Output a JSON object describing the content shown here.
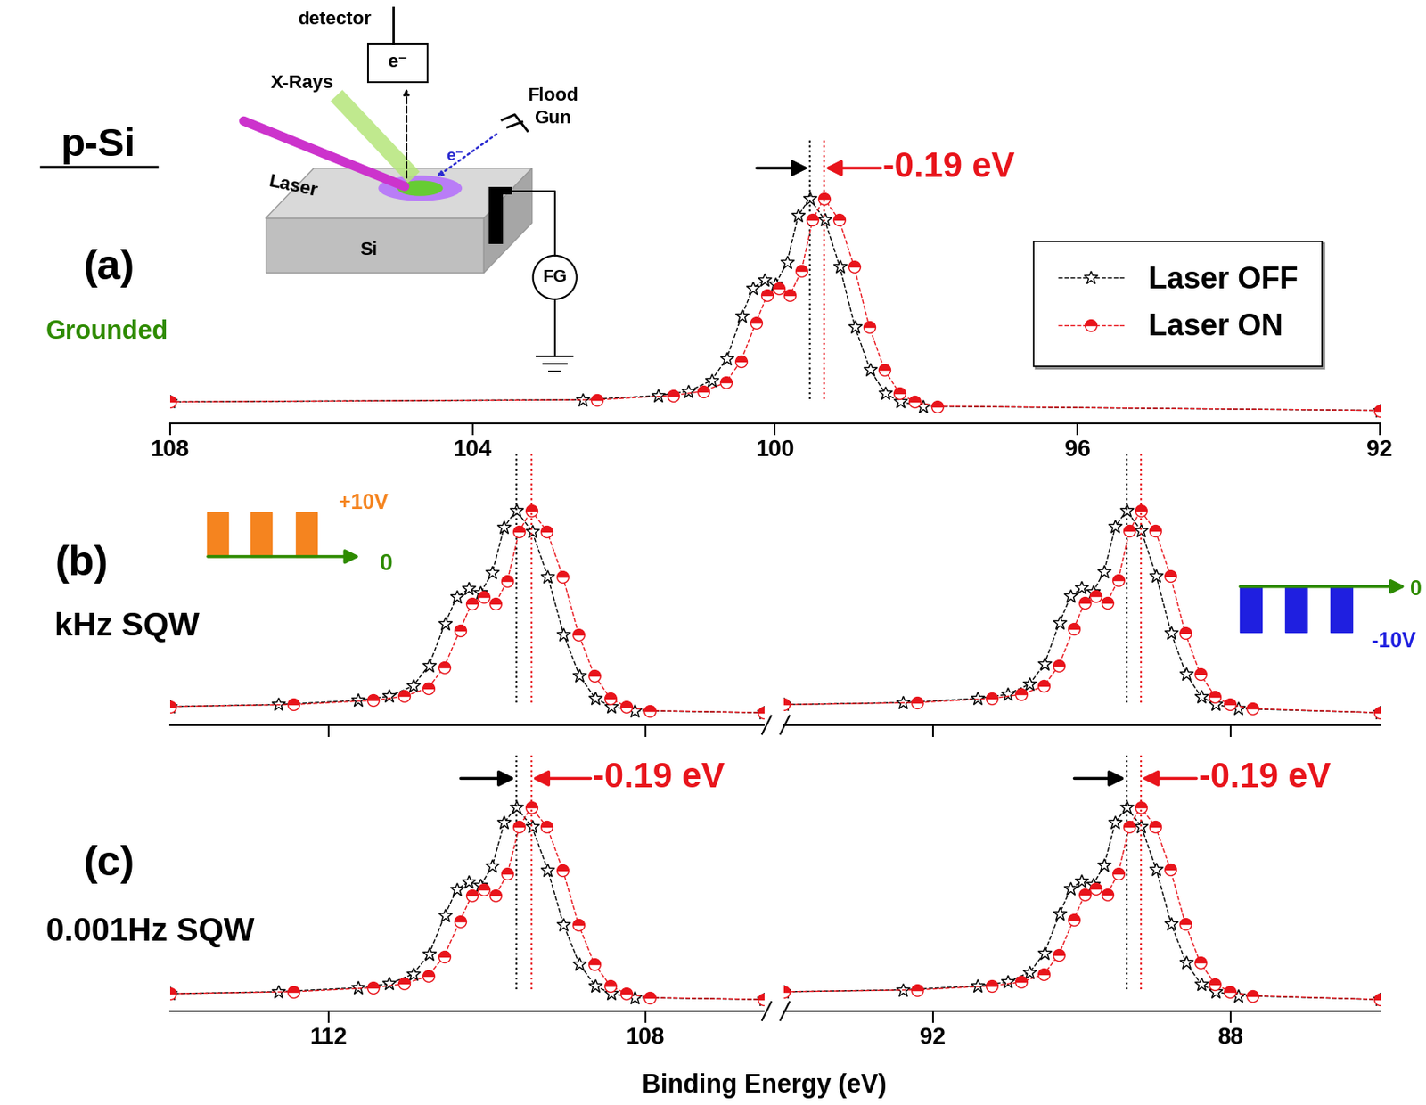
{
  "figure": {
    "title": "p-Si",
    "xlabel": "Binding Energy (eV)",
    "inset": {
      "detector": "detector",
      "detector_signal": "e⁻",
      "xray": "X-Rays",
      "laser": "Laser",
      "flood_gun": "Flood\nGun",
      "flood_electrons": "e⁻",
      "sample": "Si",
      "source": "FG"
    }
  },
  "chart_data": [
    {
      "type": "line",
      "panel_label": "(a)",
      "condition": "Grounded",
      "xlim": [
        108,
        92
      ],
      "xticks": [
        108,
        104,
        100,
        96,
        92
      ],
      "tick_labels": "x",
      "legend": "upper right",
      "annotation": "-0.19 eV",
      "series": [
        {
          "name": "Laser OFF",
          "color": "#000000",
          "marker": "star",
          "line_style": "dashed",
          "peak": 99.54,
          "x": [
            92,
            98.04,
            98.34,
            98.54,
            98.74,
            98.94,
            99.14,
            99.34,
            99.54,
            99.69,
            99.84,
            99.99,
            100.14,
            100.29,
            100.44,
            100.64,
            100.84,
            101.14,
            101.54,
            102.54,
            108
          ],
          "values": [
            0.01,
            0.03,
            0.05,
            0.09,
            0.2,
            0.4,
            0.68,
            0.9,
            1.0,
            0.92,
            0.7,
            0.6,
            0.62,
            0.58,
            0.45,
            0.25,
            0.15,
            0.1,
            0.08,
            0.06,
            0.05
          ]
        },
        {
          "name": "Laser ON",
          "color": "#e8141b",
          "marker": "half_circle",
          "line_style": "dashed",
          "peak": 99.35,
          "x": [
            92,
            97.85,
            98.15,
            98.35,
            98.55,
            98.75,
            98.95,
            99.15,
            99.35,
            99.5,
            99.65,
            99.8,
            99.95,
            100.1,
            100.25,
            100.45,
            100.65,
            100.95,
            101.35,
            102.35,
            108
          ],
          "values": [
            0.01,
            0.03,
            0.05,
            0.09,
            0.2,
            0.4,
            0.68,
            0.9,
            1.0,
            0.9,
            0.66,
            0.55,
            0.58,
            0.55,
            0.42,
            0.24,
            0.14,
            0.1,
            0.08,
            0.06,
            0.05
          ]
        }
      ]
    },
    {
      "type": "line",
      "panel_label": "(b)",
      "condition": "kHz SQW",
      "xlim": [
        114,
        106.5
      ],
      "xticks": [
        112,
        108
      ],
      "tick_labels": false,
      "waveform": {
        "high": "+10V",
        "low": "0"
      },
      "series": [
        {
          "name": "Laser OFF",
          "color": "#000000",
          "marker": "star",
          "line_style": "dashed",
          "peak": 109.63,
          "x": [
            106.5,
            108.13,
            108.43,
            108.63,
            108.83,
            109.03,
            109.23,
            109.43,
            109.63,
            109.78,
            109.93,
            110.08,
            110.23,
            110.38,
            110.53,
            110.73,
            110.93,
            111.23,
            111.63,
            112.63,
            114
          ],
          "values": [
            0.02,
            0.03,
            0.05,
            0.09,
            0.2,
            0.4,
            0.68,
            0.9,
            1.0,
            0.92,
            0.7,
            0.6,
            0.62,
            0.58,
            0.45,
            0.25,
            0.15,
            0.1,
            0.08,
            0.06,
            0.05
          ]
        },
        {
          "name": "Laser ON",
          "color": "#e8141b",
          "marker": "half_circle",
          "line_style": "dashed",
          "peak": 109.44,
          "x": [
            106.5,
            107.94,
            108.24,
            108.44,
            108.64,
            108.84,
            109.04,
            109.24,
            109.44,
            109.59,
            109.74,
            109.89,
            110.04,
            110.19,
            110.34,
            110.54,
            110.74,
            111.04,
            111.44,
            112.44,
            114
          ],
          "values": [
            0.02,
            0.03,
            0.05,
            0.09,
            0.2,
            0.4,
            0.68,
            0.9,
            1.0,
            0.9,
            0.66,
            0.55,
            0.58,
            0.55,
            0.42,
            0.24,
            0.14,
            0.1,
            0.08,
            0.06,
            0.05
          ]
        }
      ]
    },
    {
      "type": "line",
      "xlim": [
        94,
        86
      ],
      "xticks": [
        92,
        88
      ],
      "tick_labels": false,
      "waveform": {
        "high": "0",
        "low": "-10V"
      },
      "series": [
        {
          "name": "Laser OFF",
          "color": "#000000",
          "marker": "star",
          "line_style": "dashed",
          "peak": 89.4,
          "x": [
            86,
            87.9,
            88.2,
            88.4,
            88.6,
            88.8,
            89.0,
            89.2,
            89.4,
            89.55,
            89.7,
            89.85,
            90.0,
            90.15,
            90.3,
            90.5,
            90.7,
            91.0,
            91.4,
            92.4,
            94
          ],
          "values": [
            0.01,
            0.03,
            0.05,
            0.09,
            0.2,
            0.4,
            0.68,
            0.9,
            1.0,
            0.92,
            0.7,
            0.6,
            0.62,
            0.58,
            0.45,
            0.25,
            0.15,
            0.1,
            0.08,
            0.06,
            0.05
          ]
        },
        {
          "name": "Laser ON",
          "color": "#e8141b",
          "marker": "half_circle",
          "line_style": "dashed",
          "peak": 89.21,
          "x": [
            86,
            87.71,
            88.01,
            88.21,
            88.41,
            88.61,
            88.81,
            89.01,
            89.21,
            89.36,
            89.51,
            89.66,
            89.81,
            89.96,
            90.11,
            90.31,
            90.51,
            90.81,
            91.21,
            92.21,
            94
          ],
          "values": [
            0.01,
            0.03,
            0.05,
            0.09,
            0.2,
            0.4,
            0.68,
            0.9,
            1.0,
            0.9,
            0.66,
            0.55,
            0.58,
            0.55,
            0.42,
            0.24,
            0.14,
            0.1,
            0.08,
            0.06,
            0.05
          ]
        }
      ]
    },
    {
      "type": "line",
      "panel_label": "(c)",
      "condition": "0.001Hz SQW",
      "xlim": [
        114,
        106.5
      ],
      "xticks": [
        112,
        108
      ],
      "tick_labels": "x",
      "annotation": "-0.19 eV",
      "series": [
        {
          "name": "Laser OFF",
          "color": "#000000",
          "marker": "star",
          "line_style": "dashed",
          "peak": 109.63,
          "x": [
            106.5,
            108.13,
            108.43,
            108.63,
            108.83,
            109.03,
            109.23,
            109.43,
            109.63,
            109.78,
            109.93,
            110.08,
            110.23,
            110.38,
            110.53,
            110.73,
            110.93,
            111.23,
            111.63,
            112.63,
            114
          ],
          "values": [
            0.02,
            0.03,
            0.05,
            0.09,
            0.2,
            0.4,
            0.68,
            0.9,
            1.0,
            0.92,
            0.7,
            0.6,
            0.62,
            0.58,
            0.45,
            0.25,
            0.15,
            0.1,
            0.08,
            0.06,
            0.05
          ]
        },
        {
          "name": "Laser ON",
          "color": "#e8141b",
          "marker": "half_circle",
          "line_style": "dashed",
          "peak": 109.44,
          "x": [
            106.5,
            107.94,
            108.24,
            108.44,
            108.64,
            108.84,
            109.04,
            109.24,
            109.44,
            109.59,
            109.74,
            109.89,
            110.04,
            110.19,
            110.34,
            110.54,
            110.74,
            111.04,
            111.44,
            112.44,
            114
          ],
          "values": [
            0.02,
            0.03,
            0.05,
            0.09,
            0.2,
            0.4,
            0.68,
            0.9,
            1.0,
            0.9,
            0.66,
            0.55,
            0.58,
            0.55,
            0.42,
            0.24,
            0.14,
            0.1,
            0.08,
            0.06,
            0.05
          ]
        }
      ]
    },
    {
      "type": "line",
      "xlim": [
        94,
        86
      ],
      "xticks": [
        92,
        88
      ],
      "tick_labels": "x",
      "annotation": "-0.19 eV",
      "series": [
        {
          "name": "Laser OFF",
          "color": "#000000",
          "marker": "star",
          "line_style": "dashed",
          "peak": 89.4,
          "x": [
            86,
            87.9,
            88.2,
            88.4,
            88.6,
            88.8,
            89.0,
            89.2,
            89.4,
            89.55,
            89.7,
            89.85,
            90.0,
            90.15,
            90.3,
            90.5,
            90.7,
            91.0,
            91.4,
            92.4,
            94
          ],
          "values": [
            0.01,
            0.03,
            0.05,
            0.09,
            0.2,
            0.4,
            0.68,
            0.9,
            1.0,
            0.92,
            0.7,
            0.6,
            0.62,
            0.58,
            0.45,
            0.25,
            0.15,
            0.1,
            0.08,
            0.06,
            0.05
          ]
        },
        {
          "name": "Laser ON",
          "color": "#e8141b",
          "marker": "half_circle",
          "line_style": "dashed",
          "peak": 89.21,
          "x": [
            86,
            87.71,
            88.01,
            88.21,
            88.41,
            88.61,
            88.81,
            89.01,
            89.21,
            89.36,
            89.51,
            89.66,
            89.81,
            89.96,
            90.11,
            90.31,
            90.51,
            90.81,
            91.21,
            92.21,
            94
          ],
          "values": [
            0.01,
            0.03,
            0.05,
            0.09,
            0.2,
            0.4,
            0.68,
            0.9,
            1.0,
            0.9,
            0.66,
            0.55,
            0.58,
            0.55,
            0.42,
            0.24,
            0.14,
            0.1,
            0.08,
            0.06,
            0.05
          ]
        }
      ]
    }
  ]
}
